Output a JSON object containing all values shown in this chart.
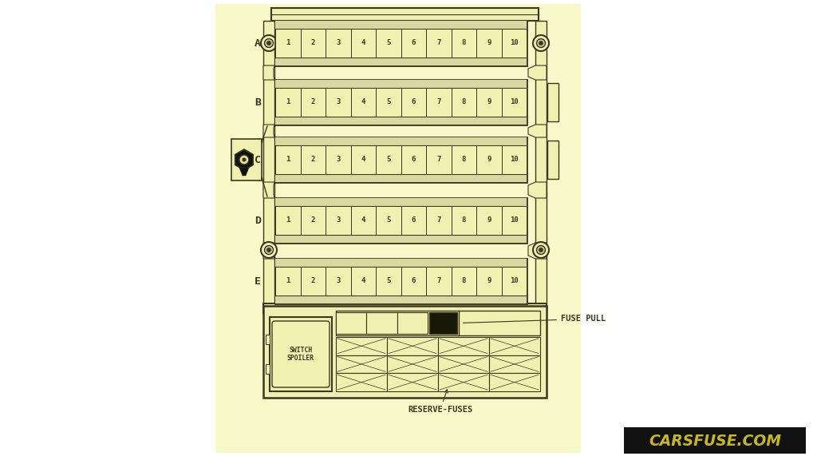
{
  "bg_color": "#f8f8c8",
  "diagram_color": "#3a3820",
  "fuse_bg": "#f0f0b0",
  "outer_bg": "#ffffff",
  "rows": [
    "A",
    "B",
    "C",
    "D",
    "E"
  ],
  "fuse_count": 10,
  "watermark": "CARSFUSE.COM",
  "fuse_pull_label": "FUSE PULL",
  "reserve_fuses_label": "RESERVE-FUSES",
  "switch_spoiler_label": "SWITCH\nSPOILER",
  "wm_bg": "#111111",
  "wm_color": "#c8b820"
}
